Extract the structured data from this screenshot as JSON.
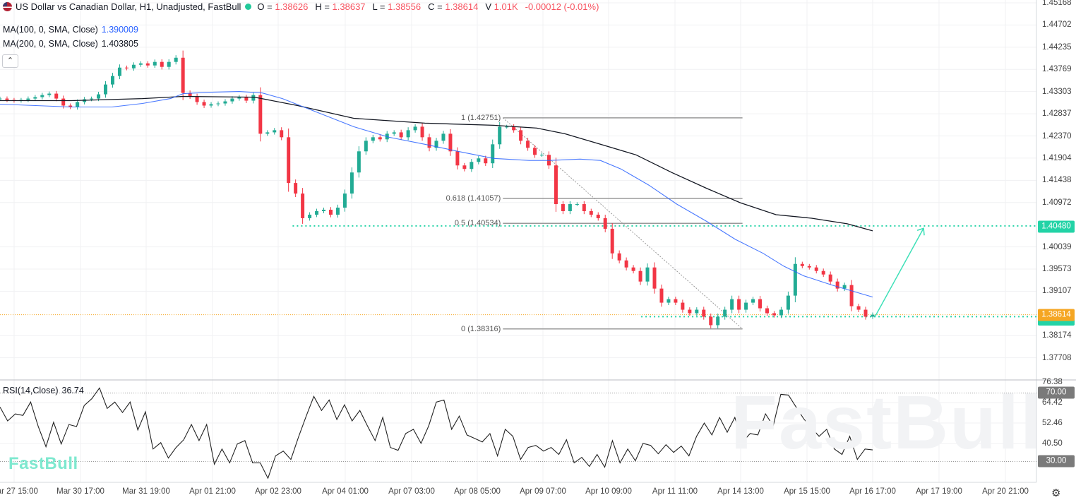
{
  "header": {
    "title": "US Dollar vs Canadian Dollar, H1, Unadjusted, FastBull",
    "o_label": "O =",
    "o_value": "1.38626",
    "h_label": "H =",
    "h_value": "1.38637",
    "l_label": "L =",
    "l_value": "1.38556",
    "c_label": "C =",
    "c_value": "1.38614",
    "v_label": "V",
    "v_value": "1.01K",
    "change": "-0.00012 (-0.01%)",
    "flag_icon": "us-ca-flag-icon",
    "status_color": "#22c99a"
  },
  "indicators": {
    "ma100_label": "MA(100, 0, SMA, Close)",
    "ma100_value": "1.390009",
    "ma100_color": "#2962ff",
    "ma200_label": "MA(200, 0, SMA, Close)",
    "ma200_value": "1.403805",
    "ma200_color": "#131722",
    "collapse_icon": "chevron-up-icon"
  },
  "rsi": {
    "label": "RSI(14,Close)",
    "value": "36.74",
    "upper": "70.00",
    "lower": "30.00"
  },
  "watermark": "FastBull",
  "price_axis": {
    "ticks": [
      "1.45168",
      "1.44702",
      "1.44235",
      "1.43769",
      "1.43303",
      "1.42837",
      "1.42370",
      "1.41904",
      "1.41438",
      "1.40972",
      "1.40039",
      "1.39573",
      "1.39107",
      "1.38174",
      "1.37708"
    ],
    "target_label": "1.40480",
    "current_label": "1.38614",
    "target_color": "#22d3a6",
    "current_color": "#f5a623"
  },
  "rsi_axis": {
    "ticks": [
      "76.38",
      "64.42",
      "52.46",
      "40.50"
    ]
  },
  "time_axis": {
    "ticks": [
      "Mar 27 15:00",
      "Mar 30 17:00",
      "Mar 31 19:00",
      "Apr 01 21:00",
      "Apr 02 23:00",
      "Apr 04 01:00",
      "Apr 07 03:00",
      "Apr 08 05:00",
      "Apr 09 07:00",
      "Apr 10 09:00",
      "Apr 11 11:00",
      "Apr 14 13:00",
      "Apr 15 15:00",
      "Apr 16 17:00",
      "Apr 17 19:00",
      "Apr 20 21:00"
    ]
  },
  "settings_icon": "gear-icon",
  "chart_data": {
    "type": "candlestick",
    "symbol": "USDCAD",
    "timeframe": "H1",
    "ylim": [
      1.37242,
      1.45168
    ],
    "up_color": "#22ab94",
    "down_color": "#f23645",
    "close": [
      1.43156,
      1.43127,
      1.43112,
      1.43127,
      1.43156,
      1.43186,
      1.4323,
      1.4326,
      1.43156,
      1.43009,
      1.42979,
      1.43083,
      1.43142,
      1.43156,
      1.43245,
      1.43452,
      1.4363,
      1.43807,
      1.43792,
      1.43866,
      1.43896,
      1.43852,
      1.43926,
      1.43822,
      1.43926,
      1.44014,
      1.43275,
      1.43201,
      1.43083,
      1.43009,
      1.43038,
      1.43053,
      1.43097,
      1.43156,
      1.43186,
      1.43112,
      1.4323,
      1.42417,
      1.42446,
      1.42491,
      1.42343,
      1.41382,
      1.4116,
      1.40642,
      1.40716,
      1.4079,
      1.4082,
      1.40716,
      1.40864,
      1.4116,
      1.41603,
      1.42047,
      1.42269,
      1.42343,
      1.42299,
      1.42417,
      1.42446,
      1.42343,
      1.42491,
      1.42565,
      1.42343,
      1.42121,
      1.42269,
      1.42417,
      1.42047,
      1.41751,
      1.41677,
      1.41825,
      1.41899,
      1.41796,
      1.42195,
      1.42565,
      1.42565,
      1.42491,
      1.42269,
      1.42121,
      1.41973,
      1.41973,
      1.41751,
      1.40938,
      1.4079,
      1.40938,
      1.40938,
      1.4079,
      1.40716,
      1.40642,
      1.4042,
      1.39903,
      1.39755,
      1.39607,
      1.39533,
      1.39311,
      1.39607,
      1.39163,
      1.38867,
      1.38941,
      1.38867,
      1.38719,
      1.38645,
      1.38719,
      1.38572,
      1.38394,
      1.38572,
      1.38719,
      1.38941,
      1.38719,
      1.38867,
      1.38941,
      1.38749,
      1.38645,
      1.38601,
      1.38719,
      1.39015,
      1.39681,
      1.39636,
      1.39607,
      1.39533,
      1.39459,
      1.39311,
      1.39163,
      1.39237,
      1.38793,
      1.38719,
      1.38572,
      1.38614
    ],
    "bars_total": 343,
    "ma100": [
      [
        0,
        1.43038
      ],
      [
        28,
        1.42979
      ],
      [
        44,
        1.42979
      ],
      [
        56,
        1.43053
      ],
      [
        67,
        1.43156
      ],
      [
        72,
        1.4326
      ],
      [
        83,
        1.43289
      ],
      [
        94,
        1.43304
      ],
      [
        103,
        1.43275
      ],
      [
        111,
        1.43156
      ],
      [
        125,
        1.42861
      ],
      [
        139,
        1.42565
      ],
      [
        153,
        1.42343
      ],
      [
        167,
        1.42195
      ],
      [
        180,
        1.42047
      ],
      [
        194,
        1.41899
      ],
      [
        208,
        1.41855
      ],
      [
        216,
        1.41855
      ],
      [
        228,
        1.41884
      ],
      [
        236,
        1.41855
      ],
      [
        244,
        1.41677
      ],
      [
        255,
        1.41337
      ],
      [
        266,
        1.40938
      ],
      [
        278,
        1.40568
      ],
      [
        289,
        1.40198
      ],
      [
        300,
        1.39903
      ],
      [
        308,
        1.39636
      ],
      [
        316,
        1.39429
      ],
      [
        327,
        1.39237
      ],
      [
        343,
        1.38986
      ]
    ],
    "ma200": [
      [
        0,
        1.43112
      ],
      [
        28,
        1.43112
      ],
      [
        56,
        1.43156
      ],
      [
        72,
        1.43201
      ],
      [
        100,
        1.43186
      ],
      [
        117,
        1.43009
      ],
      [
        139,
        1.42742
      ],
      [
        167,
        1.42639
      ],
      [
        194,
        1.42594
      ],
      [
        211,
        1.42535
      ],
      [
        222,
        1.42417
      ],
      [
        236,
        1.42195
      ],
      [
        250,
        1.41973
      ],
      [
        264,
        1.41603
      ],
      [
        278,
        1.41263
      ],
      [
        291,
        1.40967
      ],
      [
        305,
        1.40716
      ],
      [
        319,
        1.40642
      ],
      [
        333,
        1.40524
      ],
      [
        343,
        1.40376
      ]
    ],
    "fibonacci": {
      "levels": [
        {
          "label": "1 (1.42751)",
          "ratio": 1,
          "price": 1.42751
        },
        {
          "label": "0.618 (1.41057)",
          "ratio": 0.618,
          "price": 1.41057
        },
        {
          "label": "0.5 (1.40534)",
          "ratio": 0.5,
          "price": 1.40534
        },
        {
          "label": "0 (1.38316)",
          "ratio": 0,
          "price": 1.38316
        }
      ],
      "start_bar": 196,
      "end_bar": 291
    },
    "horizontal_lines": [
      {
        "price": 1.4048,
        "color": "#22d3a6",
        "from_bar": 115
      },
      {
        "price": 1.38573,
        "color": "#22d3a6",
        "from_bar": 252
      },
      {
        "price": 1.38614,
        "color": "#f5a623",
        "from_bar": 0
      }
    ],
    "arrow": {
      "from": [
        344,
        1.3858
      ],
      "to": [
        363,
        1.4043
      ],
      "color": "#3ee0b8"
    },
    "rsi_values": [
      61.8,
      53.7,
      57.8,
      56.9,
      64.7,
      50.4,
      38.6,
      52.9,
      40.2,
      51.6,
      50.4,
      62.7,
      66.7,
      72.9,
      61.0,
      64.7,
      58.6,
      64.7,
      48.4,
      59.0,
      37.3,
      41.0,
      32.0,
      38.2,
      42.7,
      51.6,
      42.2,
      51.6,
      28.4,
      37.3,
      29.2,
      40.2,
      42.2,
      29.2,
      29.2,
      20.2,
      33.3,
      36.1,
      31.2,
      44.3,
      56.5,
      68.0,
      59.8,
      65.9,
      54.5,
      63.1,
      53.7,
      59.8,
      50.8,
      42.2,
      55.7,
      38.2,
      36.5,
      46.3,
      48.8,
      40.6,
      50.8,
      64.7,
      65.9,
      48.8,
      56.5,
      45.5,
      43.5,
      41.4,
      46.3,
      33.3,
      48.8,
      44.7,
      31.2,
      38.2,
      39.4,
      36.1,
      38.2,
      34.1,
      42.7,
      29.2,
      32.4,
      27.1,
      34.1,
      26.7,
      42.2,
      29.2,
      37.3,
      30.4,
      40.6,
      39.4,
      34.5,
      39.8,
      35.3,
      39.0,
      33.3,
      44.7,
      52.4,
      45.5,
      55.7,
      47.1,
      55.7,
      41.4,
      46.3,
      45.5,
      57.8,
      50.8,
      69.2,
      68.8,
      61.8,
      54.9,
      49.6,
      44.7,
      48.8,
      37.3,
      34.1,
      44.7,
      31.2,
      37.3,
      36.74
    ],
    "rsi_ylim": [
      15,
      76.38
    ]
  }
}
